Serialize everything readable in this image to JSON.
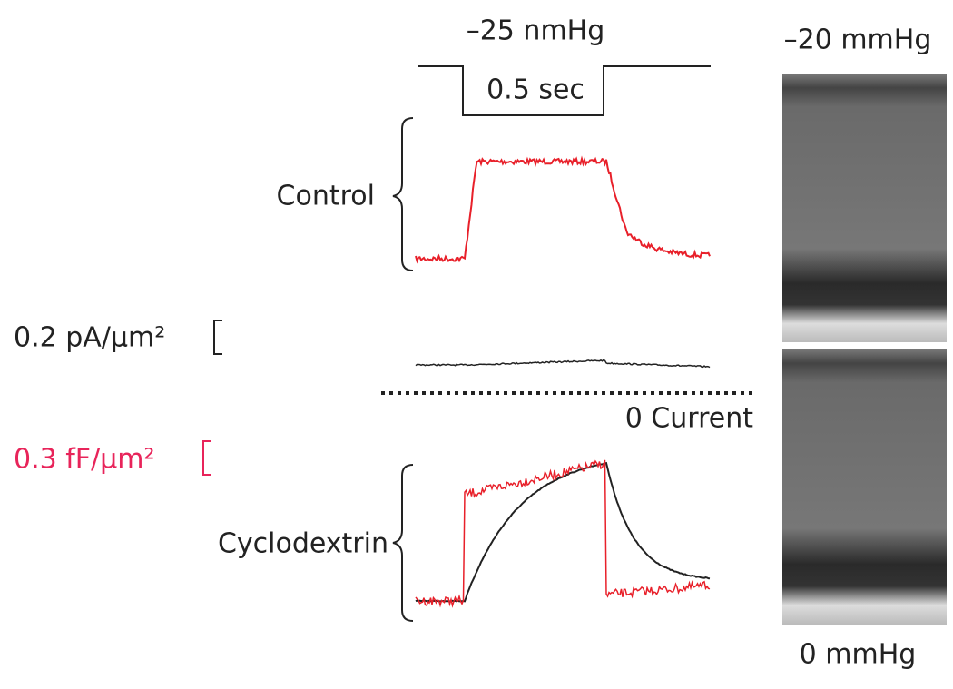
{
  "stimulus": {
    "pressure": "–25 nmHg",
    "duration": "0.5 sec"
  },
  "traces": {
    "control": "Control",
    "cyclodextrin": "Cyclodextrin",
    "zero_line": "0 Current"
  },
  "scales": {
    "current": "0.2 pA/μm²",
    "capacitance": "0.3 fF/μm²"
  },
  "images": {
    "top_label": "–20 mmHg",
    "bottom_label": "0 mmHg"
  }
}
